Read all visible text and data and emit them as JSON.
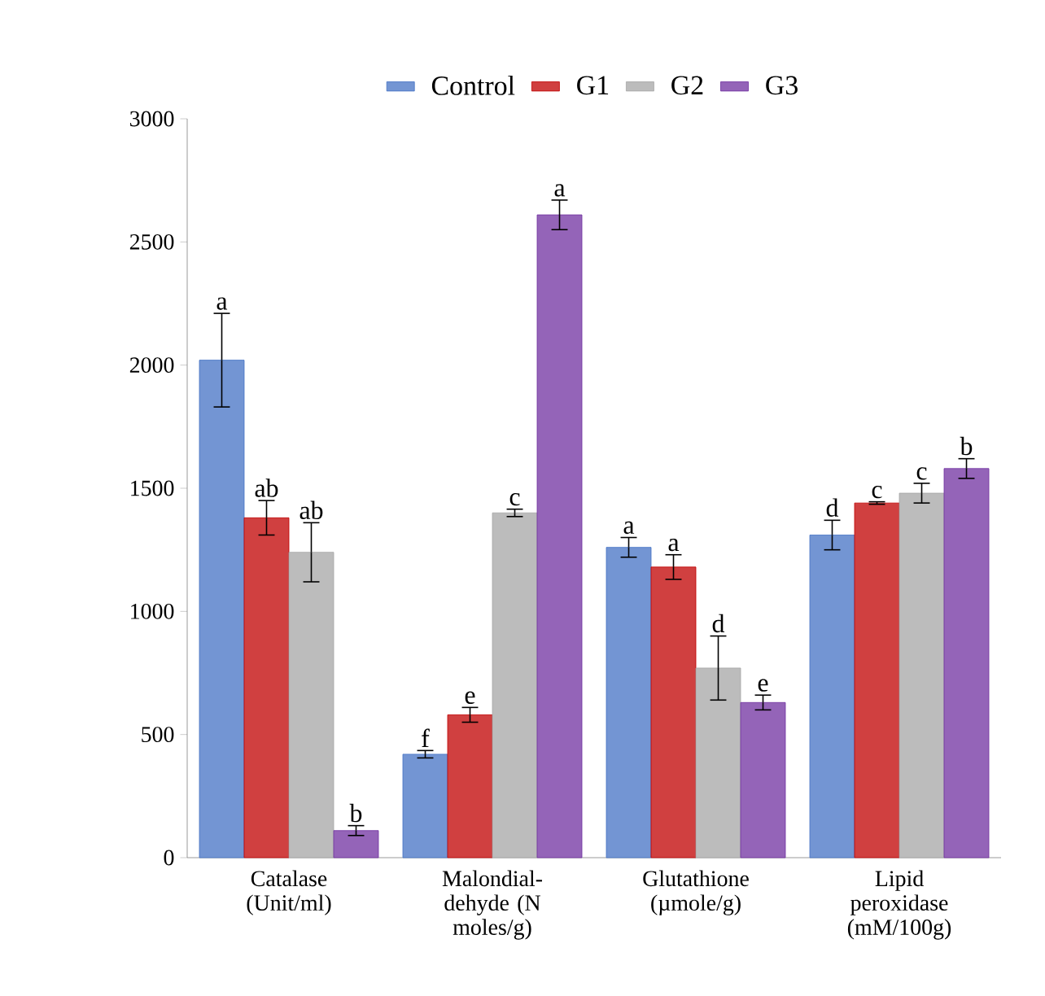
{
  "chart_data": {
    "type": "bar",
    "categories": [
      "Catalase (Unit/ml)",
      "Malondial-dehyde (N moles/g)",
      "Glutathione (µmole/g)",
      "Lipid peroxidase (mM/100g)"
    ],
    "series": [
      {
        "name": "Control",
        "color": "#4472c4",
        "values": [
          2020,
          420,
          1260,
          1310
        ],
        "errors": [
          190,
          15,
          40,
          60
        ],
        "value_labels": [
          "a",
          "f",
          "a",
          "d"
        ]
      },
      {
        "name": "G1",
        "color": "#c00000",
        "values": [
          1380,
          580,
          1180,
          1440
        ],
        "errors": [
          70,
          30,
          50,
          5
        ],
        "value_labels": [
          "ab",
          "e",
          "a",
          "c"
        ]
      },
      {
        "name": "G2",
        "color": "#a6a6a6",
        "values": [
          1240,
          1400,
          770,
          1480
        ],
        "errors": [
          120,
          15,
          130,
          40
        ],
        "value_labels": [
          "ab",
          "c",
          "d",
          "c"
        ]
      },
      {
        "name": "G3",
        "color": "#7030a0",
        "values": [
          110,
          2610,
          630,
          1580
        ],
        "errors": [
          20,
          60,
          30,
          40
        ],
        "value_labels": [
          "b",
          "a",
          "e",
          "b"
        ]
      }
    ],
    "ylim": [
      0,
      3000
    ],
    "yticks": [
      0,
      500,
      1000,
      1500,
      2000,
      2500,
      3000
    ],
    "grid": false,
    "legend": "top"
  }
}
